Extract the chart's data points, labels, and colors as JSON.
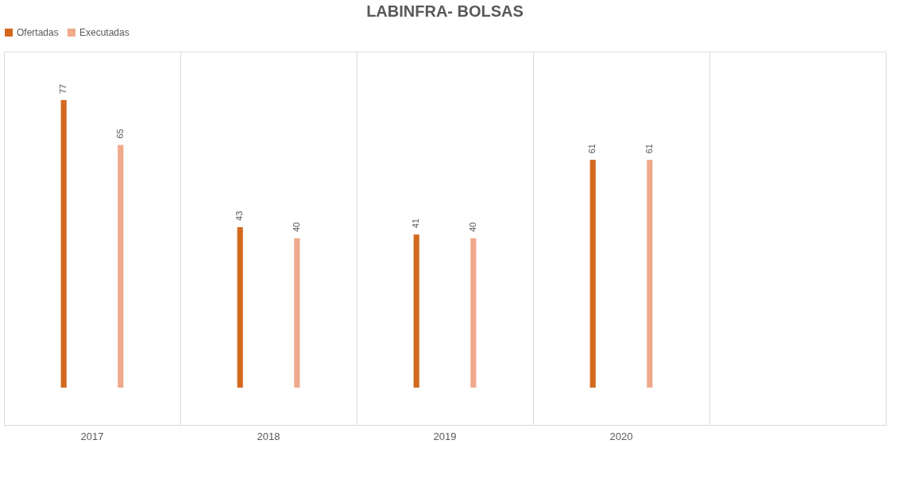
{
  "chart_data": {
    "type": "bar",
    "title": "LABINFRA- BOLSAS",
    "categories": [
      "2017",
      "2018",
      "2019",
      "2020",
      null
    ],
    "series": [
      {
        "name": "Ofertadas",
        "color": "#d2691e",
        "values": [
          77,
          43,
          41,
          61,
          null
        ]
      },
      {
        "name": "Executadas",
        "color": "#f0a98a",
        "values": [
          65,
          40,
          40,
          61,
          null
        ]
      }
    ],
    "data_labels": true,
    "grid": "x",
    "legend": "top"
  }
}
